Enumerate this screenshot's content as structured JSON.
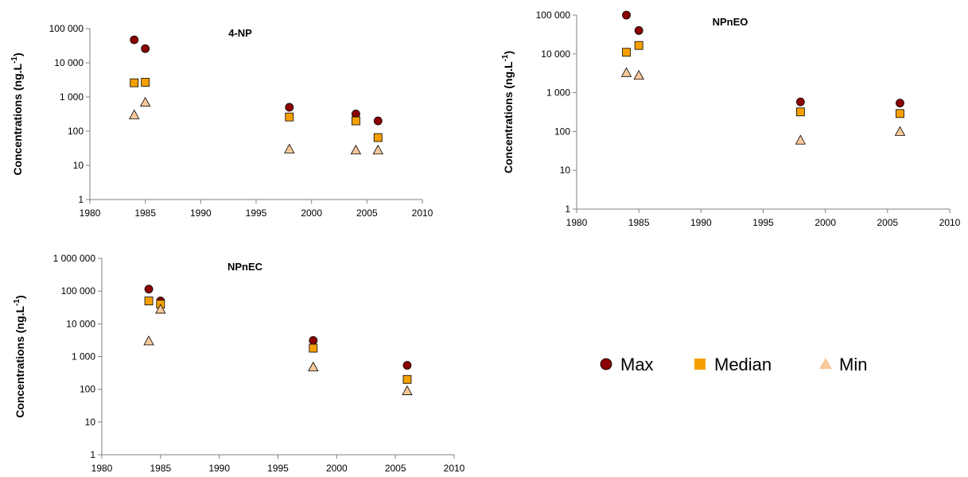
{
  "chart_data": [
    {
      "type": "scatter",
      "title": "4-NP",
      "ylabel": "Concentrations (ng.L",
      "ylabel_sup": "-1",
      "ylabel_close": ")",
      "yscale": "log",
      "ylim": [
        1,
        100000
      ],
      "xlim": [
        1980,
        2010
      ],
      "x_ticks": [
        1980,
        1985,
        1990,
        1995,
        2000,
        2005,
        2010
      ],
      "y_ticks": [
        1,
        10,
        100,
        1000,
        10000,
        100000
      ],
      "y_tick_labels": [
        "1",
        "10",
        "100",
        "1 000",
        "10 000",
        "100 000"
      ],
      "series": [
        {
          "name": "Max",
          "x": [
            1984,
            1985,
            1998,
            2004,
            2006
          ],
          "y": [
            47000,
            26000,
            500,
            320,
            200
          ]
        },
        {
          "name": "Median",
          "x": [
            1984,
            1985,
            1998,
            2004,
            2006
          ],
          "y": [
            2600,
            2700,
            260,
            200,
            65
          ]
        },
        {
          "name": "Min",
          "x": [
            1984,
            1985,
            1998,
            2004,
            2006
          ],
          "y": [
            300,
            700,
            30,
            28,
            28
          ]
        }
      ]
    },
    {
      "type": "scatter",
      "title": "NPnEO",
      "ylabel": "Concentrations (ng.L",
      "ylabel_sup": "-1",
      "ylabel_close": ")",
      "yscale": "log",
      "ylim": [
        1,
        100000
      ],
      "xlim": [
        1980,
        2010
      ],
      "x_ticks": [
        1980,
        1985,
        1990,
        1995,
        2000,
        2005,
        2010
      ],
      "y_ticks": [
        1,
        10,
        100,
        1000,
        10000,
        100000
      ],
      "y_tick_labels": [
        "1",
        "10",
        "100",
        "1 000",
        "10 000",
        "100 000"
      ],
      "series": [
        {
          "name": "Max",
          "x": [
            1984,
            1985,
            1998,
            2006
          ],
          "y": [
            100000,
            40000,
            580,
            540
          ]
        },
        {
          "name": "Median",
          "x": [
            1984,
            1985,
            1998,
            2006
          ],
          "y": [
            11000,
            16500,
            320,
            290
          ]
        },
        {
          "name": "Min",
          "x": [
            1984,
            1985,
            1998,
            2006
          ],
          "y": [
            3300,
            2800,
            60,
            100
          ]
        }
      ]
    },
    {
      "type": "scatter",
      "title": "NPnEC",
      "ylabel": "Concentrations (ng.L",
      "ylabel_sup": "-1",
      "ylabel_close": ")",
      "yscale": "log",
      "ylim": [
        1,
        1000000
      ],
      "xlim": [
        1980,
        2010
      ],
      "x_ticks": [
        1980,
        1985,
        1990,
        1995,
        2000,
        2005,
        2010
      ],
      "y_ticks": [
        1,
        10,
        100,
        1000,
        10000,
        100000,
        1000000
      ],
      "y_tick_labels": [
        "1",
        "10",
        "100",
        "1 000",
        "10 000",
        "100 000",
        "1 000 000"
      ],
      "series": [
        {
          "name": "Max",
          "x": [
            1984,
            1985,
            1998,
            2006
          ],
          "y": [
            115000,
            50000,
            3100,
            540
          ]
        },
        {
          "name": "Median",
          "x": [
            1984,
            1985,
            1998,
            2006
          ],
          "y": [
            50000,
            40000,
            1800,
            200
          ]
        },
        {
          "name": "Min",
          "x": [
            1984,
            1985,
            1998,
            2006
          ],
          "y": [
            3000,
            28000,
            480,
            90
          ]
        }
      ]
    }
  ],
  "legend": {
    "items": [
      {
        "name": "Max",
        "marker": "circle",
        "color": "#8b0000"
      },
      {
        "name": "Median",
        "marker": "square",
        "color": "#f5a000"
      },
      {
        "name": "Min",
        "marker": "triangle",
        "color": "#f8c89a"
      }
    ]
  },
  "styles": {
    "max_fill": "#8b0000",
    "median_fill": "#f5a000",
    "min_fill": "#f8c89a",
    "marker_stroke": "#000000",
    "axis_color": "#808080"
  }
}
